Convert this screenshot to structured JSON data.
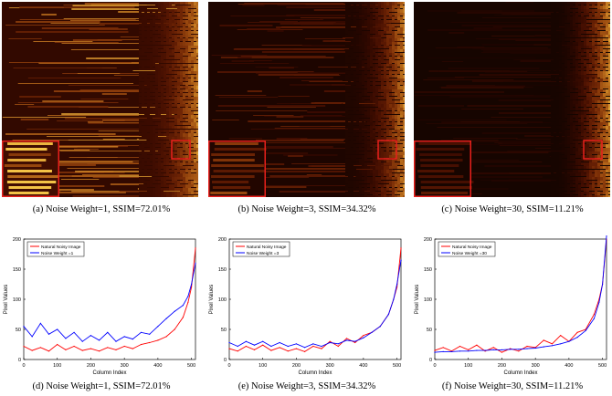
{
  "captions": {
    "a": "(a)  Noise Weight=1, SSIM=72.01%",
    "b": "(b)  Noise Weight=3, SSIM=34.32%",
    "c": "(c)  Noise Weight=30, SSIM=11.21%",
    "d": "(d)  Noise Weight=1, SSIM=72.01%",
    "e": "(e)  Noise Weight=3, SSIM=34.32%",
    "f": "(f)  Noise Weight=30, SSIM=11.21%"
  },
  "colors": {
    "natural": "#ff0000",
    "weighted": "#0000ff",
    "inset_border": "#e8201c",
    "heat_dark": "#120500",
    "heat_bright": "#f3c04a"
  },
  "chart_data": [
    {
      "type": "line",
      "panel": "d",
      "xlabel": "Column Index",
      "ylabel": "Pixel Values",
      "xlim": [
        0,
        512
      ],
      "ylim": [
        0,
        200
      ],
      "xticks": [
        0,
        100,
        200,
        300,
        400,
        500
      ],
      "yticks": [
        0,
        50,
        100,
        150,
        200
      ],
      "legend": "top-left",
      "x": [
        0,
        25,
        50,
        75,
        100,
        125,
        150,
        175,
        200,
        225,
        250,
        275,
        300,
        325,
        350,
        375,
        400,
        425,
        450,
        475,
        490,
        500,
        512
      ],
      "series": [
        {
          "name": "Natural Noisy Image",
          "color": "#ff0000",
          "values": [
            22,
            15,
            20,
            14,
            25,
            16,
            22,
            15,
            18,
            14,
            20,
            16,
            22,
            18,
            25,
            28,
            32,
            38,
            50,
            70,
            95,
            120,
            185
          ]
        },
        {
          "name": "Noise Weight =1",
          "color": "#0000ff",
          "values": [
            55,
            38,
            60,
            42,
            50,
            35,
            45,
            30,
            40,
            32,
            45,
            30,
            38,
            34,
            45,
            42,
            55,
            68,
            80,
            90,
            105,
            125,
            160
          ]
        }
      ]
    },
    {
      "type": "line",
      "panel": "e",
      "xlabel": "Column Index",
      "ylabel": "Pixel Values",
      "xlim": [
        0,
        512
      ],
      "ylim": [
        0,
        200
      ],
      "xticks": [
        0,
        100,
        200,
        300,
        400,
        500
      ],
      "yticks": [
        0,
        50,
        100,
        150,
        200
      ],
      "legend": "top-left",
      "x": [
        0,
        25,
        50,
        75,
        100,
        125,
        150,
        175,
        200,
        225,
        250,
        275,
        300,
        325,
        350,
        375,
        400,
        425,
        450,
        475,
        490,
        500,
        512
      ],
      "series": [
        {
          "name": "Natural Noisy Image",
          "color": "#ff0000",
          "values": [
            18,
            14,
            22,
            16,
            24,
            15,
            20,
            14,
            18,
            13,
            22,
            18,
            30,
            22,
            35,
            28,
            40,
            45,
            55,
            75,
            100,
            120,
            185
          ]
        },
        {
          "name": "Noise Weight =3",
          "color": "#0000ff",
          "values": [
            28,
            22,
            30,
            24,
            30,
            22,
            28,
            22,
            26,
            20,
            26,
            22,
            28,
            26,
            32,
            30,
            36,
            45,
            55,
            75,
            100,
            125,
            165
          ]
        }
      ]
    },
    {
      "type": "line",
      "panel": "f",
      "xlabel": "Column Index",
      "ylabel": "Pixel Values",
      "xlim": [
        0,
        512
      ],
      "ylim": [
        0,
        200
      ],
      "xticks": [
        0,
        100,
        200,
        300,
        400,
        500
      ],
      "yticks": [
        0,
        50,
        100,
        150,
        200
      ],
      "legend": "top-left",
      "x": [
        0,
        25,
        50,
        75,
        100,
        125,
        150,
        175,
        200,
        225,
        250,
        275,
        300,
        325,
        350,
        375,
        400,
        425,
        450,
        475,
        490,
        500,
        512
      ],
      "series": [
        {
          "name": "Natural Noisy Image",
          "color": "#ff0000",
          "values": [
            15,
            20,
            14,
            22,
            16,
            24,
            14,
            20,
            12,
            18,
            14,
            22,
            20,
            32,
            26,
            40,
            30,
            45,
            50,
            75,
            100,
            125,
            200
          ]
        },
        {
          "name": "Noise Weight =30",
          "color": "#0000ff",
          "values": [
            12,
            13,
            13,
            14,
            14,
            15,
            15,
            16,
            16,
            17,
            17,
            18,
            19,
            21,
            23,
            26,
            30,
            37,
            48,
            68,
            95,
            125,
            205
          ]
        }
      ]
    }
  ]
}
